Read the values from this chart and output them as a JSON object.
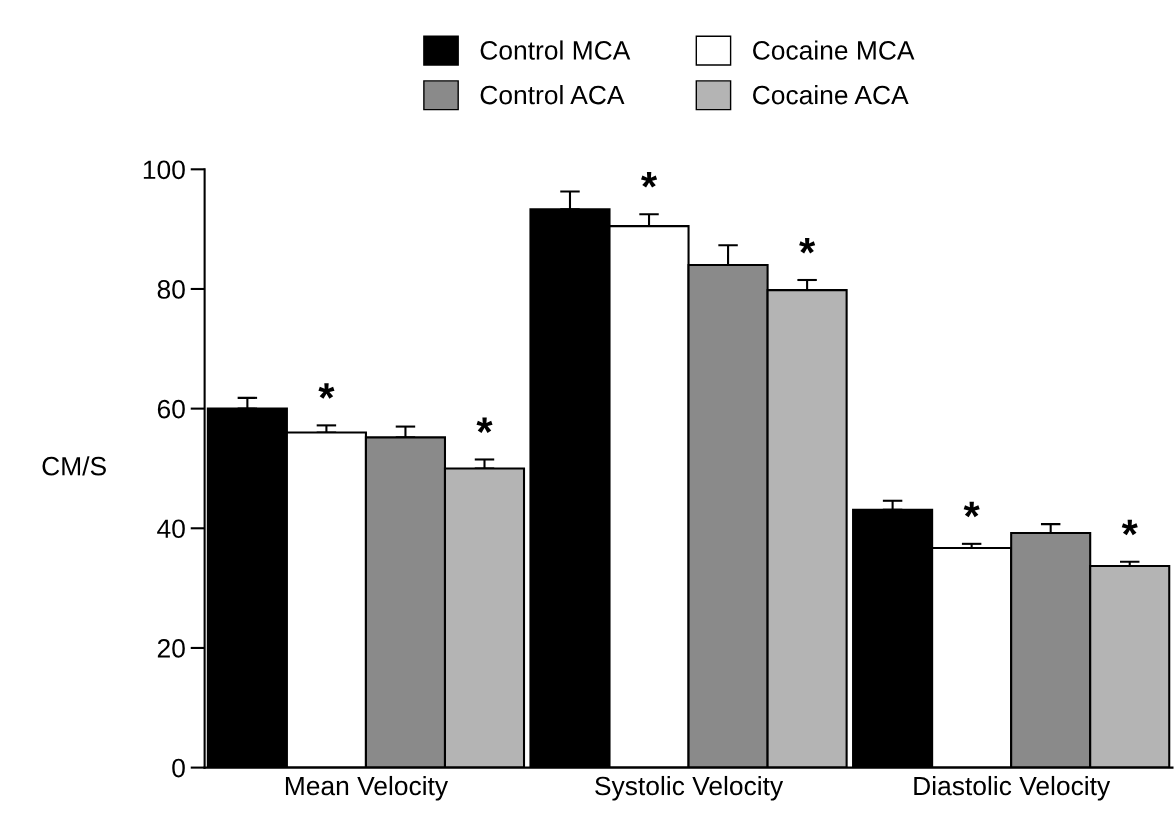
{
  "chart_data": {
    "type": "bar",
    "ylabel": "CM/S",
    "categories": [
      "Mean Velocity",
      "Systolic Velocity",
      "Diastolic Velocity"
    ],
    "series": [
      {
        "name": "Control MCA",
        "color": "#000000",
        "values": [
          60,
          93.3,
          43.1
        ],
        "errors": [
          1.8,
          3,
          1.5
        ]
      },
      {
        "name": "Cocaine MCA",
        "color": "#ffffff",
        "values": [
          56,
          90.5,
          36.7
        ],
        "errors": [
          1.2,
          2,
          0.7
        ],
        "value_labels": [
          "*",
          "*",
          "*"
        ]
      },
      {
        "name": "Control ACA",
        "color": "#8a8a8a",
        "values": [
          55.2,
          84,
          39.2
        ],
        "errors": [
          1.8,
          3.3,
          1.5
        ]
      },
      {
        "name": "Cocaine ACA",
        "color": "#b4b4b4",
        "values": [
          50,
          79.8,
          33.7
        ],
        "errors": [
          1.5,
          1.7,
          0.7
        ],
        "value_labels": [
          "*",
          "*",
          "*"
        ]
      }
    ],
    "ylim": [
      0,
      100
    ],
    "yticks": [
      0,
      20,
      40,
      60,
      80,
      100
    ],
    "grid": false,
    "legend": "top"
  }
}
